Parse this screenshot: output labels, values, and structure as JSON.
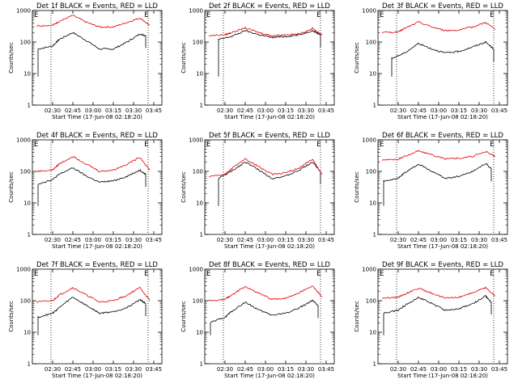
{
  "colors": {
    "events": "#000000",
    "lld": "#e00000",
    "background": "#ffffff"
  },
  "chart_data": [
    {
      "type": "line",
      "title": "Det 1f BLACK = Events, RED = LLD",
      "xlabel": "Start Time (17-Jun-08 02:18:20)",
      "ylabel": "Counts/sec",
      "scale": "log",
      "ylim": [
        1,
        1000
      ],
      "yticks": [
        "1",
        "10",
        "100",
        "1000"
      ],
      "xticks": [
        "02:30",
        "02:45",
        "03:00",
        "03:15",
        "03:30",
        "03:45"
      ],
      "markers": [
        "E",
        "E"
      ],
      "series": [
        {
          "name": "Events",
          "values": [
            [
              2.32,
              60
            ],
            [
              2.5,
              75
            ],
            [
              2.58,
              120
            ],
            [
              2.75,
              200
            ],
            [
              2.92,
              110
            ],
            [
              3.08,
              60
            ],
            [
              3.25,
              60
            ],
            [
              3.42,
              100
            ],
            [
              3.58,
              180
            ],
            [
              3.65,
              160
            ]
          ]
        },
        {
          "name": "LLD",
          "values": [
            [
              2.3,
              330
            ],
            [
              2.5,
              340
            ],
            [
              2.58,
              450
            ],
            [
              2.75,
              700
            ],
            [
              2.92,
              420
            ],
            [
              3.08,
              300
            ],
            [
              3.25,
              300
            ],
            [
              3.42,
              420
            ],
            [
              3.58,
              580
            ],
            [
              3.7,
              340
            ]
          ]
        }
      ]
    },
    {
      "type": "line",
      "title": "Det 2f BLACK = Events, RED = LLD",
      "xlabel": "Start Time (17-Jun-08 02:18:20)",
      "ylabel": "Counts/sec",
      "scale": "log",
      "ylim": [
        1,
        1000
      ],
      "yticks": [
        "1",
        "10",
        "100",
        "1000"
      ],
      "xticks": [
        "02:30",
        "02:45",
        "03:00",
        "03:15",
        "03:30",
        "03:45"
      ],
      "markers": [
        "E",
        "E"
      ],
      "series": [
        {
          "name": "Events",
          "values": [
            [
              2.42,
              120
            ],
            [
              2.58,
              150
            ],
            [
              2.75,
              230
            ],
            [
              2.92,
              170
            ],
            [
              3.08,
              140
            ],
            [
              3.25,
              150
            ],
            [
              3.42,
              170
            ],
            [
              3.58,
              230
            ],
            [
              3.68,
              170
            ]
          ]
        },
        {
          "name": "LLD",
          "values": [
            [
              2.3,
              160
            ],
            [
              2.5,
              170
            ],
            [
              2.58,
              200
            ],
            [
              2.75,
              280
            ],
            [
              2.92,
              200
            ],
            [
              3.08,
              160
            ],
            [
              3.25,
              170
            ],
            [
              3.42,
              180
            ],
            [
              3.58,
              270
            ],
            [
              3.7,
              170
            ]
          ]
        }
      ]
    },
    {
      "type": "line",
      "title": "Det 3f BLACK = Events, RED = LLD",
      "xlabel": "Start Time (17-Jun-08 02:18:20)",
      "ylabel": "Counts/sec",
      "scale": "log",
      "ylim": [
        1,
        1000
      ],
      "yticks": [
        "1",
        "10",
        "100",
        "1000"
      ],
      "xticks": [
        "02:30",
        "02:45",
        "03:00",
        "03:15",
        "03:30",
        "03:45"
      ],
      "markers": [
        "E",
        "E"
      ],
      "series": [
        {
          "name": "Events",
          "values": [
            [
              2.42,
              30
            ],
            [
              2.58,
              45
            ],
            [
              2.75,
              90
            ],
            [
              2.92,
              60
            ],
            [
              3.08,
              45
            ],
            [
              3.25,
              50
            ],
            [
              3.42,
              70
            ],
            [
              3.58,
              100
            ],
            [
              3.68,
              60
            ]
          ]
        },
        {
          "name": "LLD",
          "values": [
            [
              2.3,
              200
            ],
            [
              2.5,
              210
            ],
            [
              2.58,
              270
            ],
            [
              2.75,
              430
            ],
            [
              2.92,
              300
            ],
            [
              3.08,
              230
            ],
            [
              3.25,
              240
            ],
            [
              3.42,
              300
            ],
            [
              3.58,
              420
            ],
            [
              3.7,
              250
            ]
          ]
        }
      ]
    },
    {
      "type": "line",
      "title": "Det 4f BLACK = Events, RED = LLD",
      "xlabel": "Start Time (17-Jun-08 02:18:20)",
      "ylabel": "Counts/sec",
      "scale": "log",
      "ylim": [
        1,
        1000
      ],
      "yticks": [
        "1",
        "10",
        "100",
        "1000"
      ],
      "xticks": [
        "02:30",
        "02:45",
        "03:00",
        "03:15",
        "03:30",
        "03:45"
      ],
      "markers": [
        "E",
        "E"
      ],
      "series": [
        {
          "name": "Events",
          "values": [
            [
              2.32,
              40
            ],
            [
              2.5,
              55
            ],
            [
              2.58,
              80
            ],
            [
              2.75,
              130
            ],
            [
              2.92,
              70
            ],
            [
              3.08,
              45
            ],
            [
              3.25,
              50
            ],
            [
              3.42,
              70
            ],
            [
              3.58,
              110
            ],
            [
              3.65,
              80
            ]
          ]
        },
        {
          "name": "LLD",
          "values": [
            [
              2.3,
              100
            ],
            [
              2.5,
              110
            ],
            [
              2.58,
              170
            ],
            [
              2.75,
              300
            ],
            [
              2.92,
              170
            ],
            [
              3.08,
              100
            ],
            [
              3.25,
              110
            ],
            [
              3.42,
              170
            ],
            [
              3.58,
              280
            ],
            [
              3.7,
              110
            ]
          ]
        }
      ]
    },
    {
      "type": "line",
      "title": "Det 5f BLACK = Events, RED = LLD",
      "xlabel": "Start Time (17-Jun-08 02:18:20)",
      "ylabel": "Counts/sec",
      "scale": "log",
      "ylim": [
        1,
        1000
      ],
      "yticks": [
        "1",
        "10",
        "100",
        "1000"
      ],
      "xticks": [
        "02:30",
        "02:45",
        "03:00",
        "03:15",
        "03:30",
        "03:45"
      ],
      "markers": [
        "E",
        "E"
      ],
      "series": [
        {
          "name": "Events",
          "values": [
            [
              2.42,
              60
            ],
            [
              2.58,
              100
            ],
            [
              2.75,
              200
            ],
            [
              2.92,
              110
            ],
            [
              3.08,
              60
            ],
            [
              3.25,
              70
            ],
            [
              3.42,
              110
            ],
            [
              3.58,
              200
            ],
            [
              3.68,
              100
            ]
          ]
        },
        {
          "name": "LLD",
          "values": [
            [
              2.3,
              70
            ],
            [
              2.5,
              80
            ],
            [
              2.58,
              120
            ],
            [
              2.75,
              250
            ],
            [
              2.92,
              140
            ],
            [
              3.08,
              80
            ],
            [
              3.25,
              90
            ],
            [
              3.42,
              130
            ],
            [
              3.58,
              240
            ],
            [
              3.7,
              80
            ]
          ]
        }
      ]
    },
    {
      "type": "line",
      "title": "Det 6f BLACK = Events, RED = LLD",
      "xlabel": "Start Time (17-Jun-08 02:18:20)",
      "ylabel": "Counts/sec",
      "scale": "log",
      "ylim": [
        1,
        1000
      ],
      "yticks": [
        "1",
        "10",
        "100",
        "1000"
      ],
      "xticks": [
        "02:30",
        "02:45",
        "03:00",
        "03:15",
        "03:30",
        "03:45"
      ],
      "markers": [
        "E",
        "E"
      ],
      "series": [
        {
          "name": "Events",
          "values": [
            [
              2.32,
              50
            ],
            [
              2.5,
              60
            ],
            [
              2.58,
              90
            ],
            [
              2.75,
              170
            ],
            [
              2.92,
              100
            ],
            [
              3.08,
              60
            ],
            [
              3.25,
              70
            ],
            [
              3.42,
              100
            ],
            [
              3.58,
              180
            ],
            [
              3.65,
              120
            ]
          ]
        },
        {
          "name": "LLD",
          "values": [
            [
              2.3,
              230
            ],
            [
              2.5,
              240
            ],
            [
              2.58,
              300
            ],
            [
              2.75,
              450
            ],
            [
              2.92,
              330
            ],
            [
              3.08,
              250
            ],
            [
              3.25,
              260
            ],
            [
              3.42,
              300
            ],
            [
              3.58,
              420
            ],
            [
              3.7,
              300
            ]
          ]
        }
      ]
    },
    {
      "type": "line",
      "title": "Det 7f BLACK = Events, RED = LLD",
      "xlabel": "Start Time (17-Jun-08 02:18:20)",
      "ylabel": "Counts/sec",
      "scale": "log",
      "ylim": [
        1,
        1000
      ],
      "yticks": [
        "1",
        "10",
        "100",
        "1000"
      ],
      "xticks": [
        "02:30",
        "02:45",
        "03:00",
        "03:15",
        "03:30",
        "03:45"
      ],
      "markers": [
        "E",
        "E"
      ],
      "series": [
        {
          "name": "Events",
          "values": [
            [
              2.32,
              30
            ],
            [
              2.5,
              40
            ],
            [
              2.58,
              60
            ],
            [
              2.75,
              130
            ],
            [
              2.92,
              70
            ],
            [
              3.08,
              40
            ],
            [
              3.25,
              45
            ],
            [
              3.42,
              60
            ],
            [
              3.58,
              110
            ],
            [
              3.65,
              80
            ]
          ]
        },
        {
          "name": "LLD",
          "values": [
            [
              2.3,
              90
            ],
            [
              2.5,
              100
            ],
            [
              2.58,
              150
            ],
            [
              2.75,
              260
            ],
            [
              2.92,
              150
            ],
            [
              3.08,
              90
            ],
            [
              3.25,
              100
            ],
            [
              3.42,
              150
            ],
            [
              3.58,
              260
            ],
            [
              3.7,
              100
            ]
          ]
        }
      ]
    },
    {
      "type": "line",
      "title": "Det 8f BLACK = Events, RED = LLD",
      "xlabel": "Start Time (17-Jun-08 02:18:20)",
      "ylabel": "Counts/sec",
      "scale": "log",
      "ylim": [
        1,
        1000
      ],
      "yticks": [
        "1",
        "10",
        "100",
        "1000"
      ],
      "xticks": [
        "02:30",
        "02:45",
        "03:00",
        "03:15",
        "03:30",
        "03:45"
      ],
      "markers": [
        "E",
        "E"
      ],
      "series": [
        {
          "name": "Events",
          "values": [
            [
              2.32,
              20
            ],
            [
              2.5,
              30
            ],
            [
              2.58,
              45
            ],
            [
              2.75,
              90
            ],
            [
              2.92,
              50
            ],
            [
              3.08,
              35
            ],
            [
              3.25,
              40
            ],
            [
              3.42,
              60
            ],
            [
              3.58,
              100
            ],
            [
              3.65,
              70
            ]
          ]
        },
        {
          "name": "LLD",
          "values": [
            [
              2.3,
              100
            ],
            [
              2.5,
              110
            ],
            [
              2.58,
              150
            ],
            [
              2.75,
              280
            ],
            [
              2.92,
              170
            ],
            [
              3.08,
              110
            ],
            [
              3.25,
              120
            ],
            [
              3.42,
              180
            ],
            [
              3.58,
              300
            ],
            [
              3.7,
              130
            ]
          ]
        }
      ]
    },
    {
      "type": "line",
      "title": "Det 9f BLACK = Events, RED = LLD",
      "xlabel": "Start Time (17-Jun-08 02:18:20)",
      "ylabel": "Counts/sec",
      "scale": "log",
      "ylim": [
        1,
        1000
      ],
      "yticks": [
        "1",
        "10",
        "100",
        "1000"
      ],
      "xticks": [
        "02:30",
        "02:45",
        "03:00",
        "03:15",
        "03:30",
        "03:45"
      ],
      "markers": [
        "E",
        "E"
      ],
      "series": [
        {
          "name": "Events",
          "values": [
            [
              2.32,
              40
            ],
            [
              2.5,
              50
            ],
            [
              2.58,
              70
            ],
            [
              2.75,
              130
            ],
            [
              2.92,
              80
            ],
            [
              3.08,
              50
            ],
            [
              3.25,
              55
            ],
            [
              3.42,
              80
            ],
            [
              3.58,
              140
            ],
            [
              3.65,
              90
            ]
          ]
        },
        {
          "name": "LLD",
          "values": [
            [
              2.3,
              120
            ],
            [
              2.5,
              130
            ],
            [
              2.58,
              160
            ],
            [
              2.75,
              250
            ],
            [
              2.92,
              170
            ],
            [
              3.08,
              120
            ],
            [
              3.25,
              130
            ],
            [
              3.42,
              180
            ],
            [
              3.58,
              260
            ],
            [
              3.7,
              140
            ]
          ]
        }
      ]
    }
  ]
}
